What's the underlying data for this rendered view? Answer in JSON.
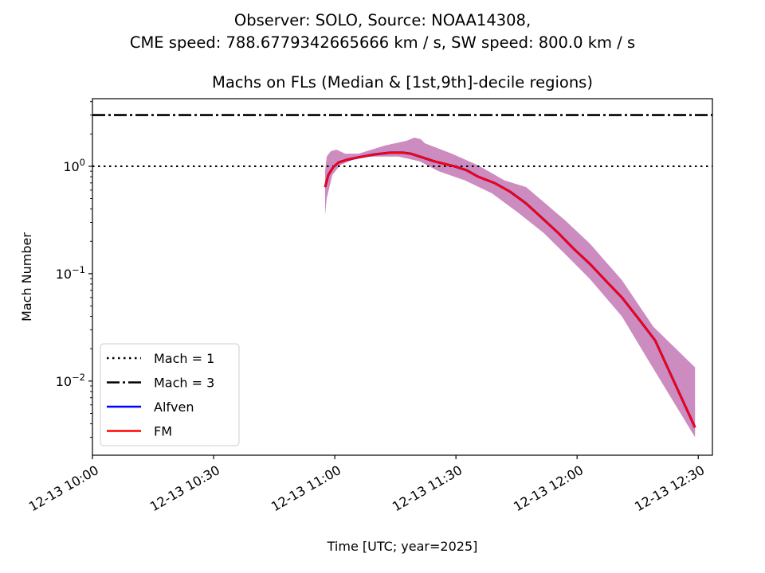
{
  "chart_data": {
    "type": "line",
    "suptitle_line1": "Observer: SOLO, Source: NOAA14308,",
    "suptitle_line2": "CME speed: 788.6779342665666 km / s, SW speed: 800.0 km / s",
    "title": "Machs on FLs (Median & [1st,9th]-decile regions)",
    "xlabel": "Time [UTC; year=2025]",
    "ylabel": "Mach Number",
    "x_units": "minutes after 2025-12-13 10:00 UTC",
    "xlim": [
      0,
      153.5
    ],
    "ylim": [
      0.00204,
      4.26
    ],
    "yscale": "log",
    "x_ticks": [
      {
        "value": 0,
        "label": "12-13 10:00"
      },
      {
        "value": 30,
        "label": "12-13 10:30"
      },
      {
        "value": 60,
        "label": "12-13 11:00"
      },
      {
        "value": 90,
        "label": "12-13 11:30"
      },
      {
        "value": 120,
        "label": "12-13 12:00"
      },
      {
        "value": 150,
        "label": "12-13 12:30"
      }
    ],
    "y_ticks": [
      {
        "value": 1,
        "base": "10",
        "exp": "0"
      },
      {
        "value": 0.1,
        "base": "10",
        "exp": "−1"
      },
      {
        "value": 0.01,
        "base": "10",
        "exp": "−2"
      }
    ],
    "hlines": [
      {
        "name": "Mach = 1",
        "value": 1,
        "style": "dotted",
        "color": "#000000"
      },
      {
        "name": "Mach = 3",
        "value": 3,
        "style": "dashdot",
        "color": "#000000"
      }
    ],
    "band": {
      "color": "#cc8cc0",
      "upper": {
        "x": [
          57.6,
          58.0,
          59.0,
          60.4,
          62.6,
          65.9,
          72.4,
          77.8,
          79.7,
          81.3,
          82.3,
          89.0,
          95.5,
          102.0,
          107.4,
          111.3,
          117.2,
          123.2,
          131.1,
          138.9,
          149.2
        ],
        "y": [
          0.9,
          1.23,
          1.38,
          1.43,
          1.31,
          1.31,
          1.56,
          1.73,
          1.85,
          1.79,
          1.64,
          1.31,
          1.02,
          0.74,
          0.64,
          0.48,
          0.31,
          0.19,
          0.087,
          0.032,
          0.0134
        ]
      },
      "lower": {
        "x": [
          57.6,
          58.0,
          59.4,
          61.4,
          65.9,
          69.3,
          75.8,
          81.1,
          85.7,
          92.2,
          98.9,
          105.4,
          111.7,
          117.2,
          123.2,
          131.1,
          139.3,
          149.2
        ],
        "y": [
          0.35,
          0.5,
          0.83,
          1.03,
          1.21,
          1.23,
          1.23,
          1.11,
          0.9,
          0.74,
          0.56,
          0.37,
          0.24,
          0.15,
          0.089,
          0.04,
          0.0123,
          0.003
        ]
      }
    },
    "series": [
      {
        "name": "Alfven",
        "color": "#0000ff",
        "x": [
          57.6,
          58.4,
          59.6,
          61.0,
          63.0,
          65.9,
          69.9,
          73.8,
          76.8,
          78.8,
          81.7,
          84.7,
          89.6,
          92.6,
          95.5,
          99.5,
          103.4,
          107.4,
          111.3,
          115.3,
          119.2,
          123.2,
          127.1,
          131.1,
          135.0,
          139.3,
          149.2
        ],
        "y": [
          0.64,
          0.83,
          0.98,
          1.09,
          1.15,
          1.21,
          1.29,
          1.34,
          1.34,
          1.31,
          1.21,
          1.11,
          1.0,
          0.92,
          0.8,
          0.7,
          0.58,
          0.45,
          0.33,
          0.24,
          0.17,
          0.123,
          0.086,
          0.06,
          0.039,
          0.024,
          0.0037
        ]
      },
      {
        "name": "FM",
        "color": "#ff0000",
        "x": [
          57.6,
          58.4,
          59.6,
          61.0,
          63.0,
          65.9,
          69.9,
          73.8,
          76.8,
          78.8,
          81.7,
          84.7,
          89.6,
          92.6,
          95.5,
          99.5,
          103.4,
          107.4,
          111.3,
          115.3,
          119.2,
          123.2,
          127.1,
          131.1,
          135.0,
          139.3,
          149.2
        ],
        "y": [
          0.64,
          0.83,
          0.98,
          1.09,
          1.15,
          1.21,
          1.29,
          1.34,
          1.34,
          1.31,
          1.21,
          1.11,
          1.0,
          0.92,
          0.8,
          0.7,
          0.58,
          0.45,
          0.33,
          0.24,
          0.17,
          0.123,
          0.086,
          0.06,
          0.039,
          0.024,
          0.0037
        ]
      }
    ],
    "legend": {
      "placement": "lower-left",
      "entries": [
        "Mach = 1",
        "Mach = 3",
        "Alfven",
        "FM"
      ]
    }
  }
}
